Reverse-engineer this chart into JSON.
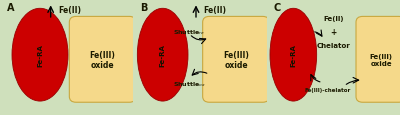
{
  "bg_color": "#cfe0bc",
  "ellipse_color": "#cc0000",
  "ellipse_edge": "#990000",
  "rect_color": "#f5d98a",
  "rect_edge_color": "#c8a840",
  "text_color": "#1a1a00",
  "fe_ra_text": "Fe-RA",
  "fe3_oxide_text": "Fe(III)\noxide",
  "fe2_text": "Fe(II)",
  "chelator_text": "Chelator",
  "fe3_chelator_text": "Fe(III)-chelator",
  "plus_text": "+"
}
